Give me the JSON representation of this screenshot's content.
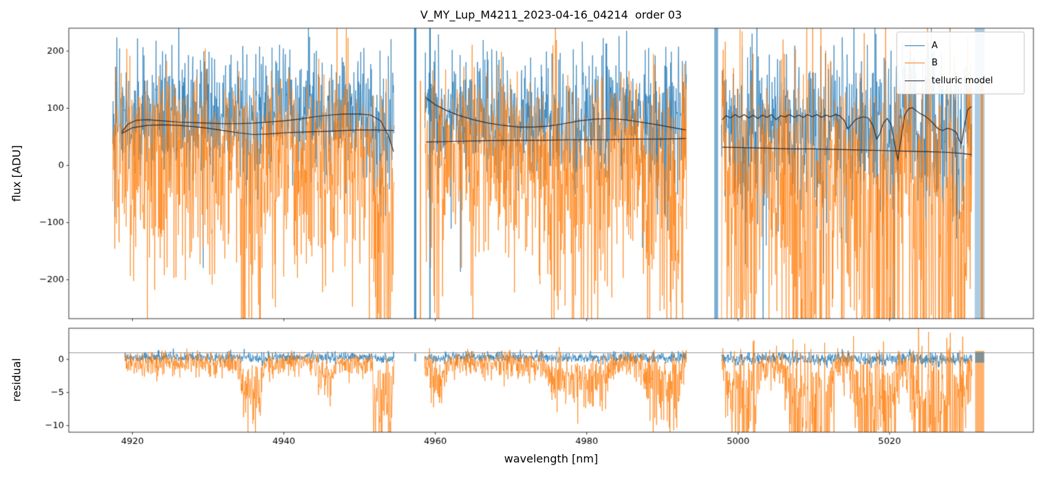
{
  "chart_data": [
    {
      "type": "line",
      "panel": "flux",
      "title": "V_MY_Lup_M4211_2023-04-16_04214  order 03",
      "ylabel": "flux [ADU]",
      "ylim": [
        -268,
        240
      ],
      "yticks": [
        200,
        100,
        0,
        -100,
        -200
      ],
      "x": {
        "lim": [
          4911.6,
          5039.0
        ],
        "ticks": [
          4920,
          4940,
          4960,
          4980,
          5000,
          5020
        ]
      },
      "grid": false,
      "legend": {
        "location": "upper right",
        "entries": [
          {
            "label": "A",
            "color": "#1f77b4"
          },
          {
            "label": "B",
            "color": "#ff7f0e"
          },
          {
            "label": "telluric model",
            "color": "#2b2b33"
          }
        ]
      },
      "segments": [
        {
          "x0": 4917.4,
          "x1": 4954.6,
          "A": {
            "mean": 90,
            "sigma": 55,
            "down_p": 0.004,
            "down_mag": 330,
            "dip_mean": 0.3,
            "dip_sig": 0.002
          },
          "B": {
            "mean": 28,
            "sigma": 62,
            "skew": 1.7,
            "down_p": 0.02,
            "down_mag": 200,
            "dip_mean": 1,
            "dip_sig": 0.01
          }
        },
        {
          "x0": 4958.6,
          "x1": 4993.2,
          "A": {
            "mean": 90,
            "sigma": 55,
            "down_p": 0.006,
            "down_mag": 330,
            "dip_mean": 0.3,
            "dip_sig": 0.002
          },
          "B": {
            "mean": 30,
            "sigma": 60,
            "skew": 1.7,
            "down_p": 0.02,
            "down_mag": 200,
            "dip_mean": 1,
            "dip_sig": 0.01
          }
        },
        {
          "x0": 4997.8,
          "x1": 5030.9,
          "A": {
            "mean": 88,
            "sigma": 58,
            "down_p": 0.02,
            "down_mag": 340,
            "dip_mean": 0.3,
            "dip_sig": 0.002
          },
          "B": {
            "mean": 20,
            "sigma": 72,
            "skew": 1.9,
            "down_p": 0.025,
            "down_mag": 220,
            "dip_mean": 1,
            "dip_sig": 0.01
          }
        }
      ],
      "absorption_regions": [
        {
          "x0": 4934,
          "x1": 4937.5,
          "depth": 60
        },
        {
          "x0": 4944,
          "x1": 4947,
          "depth": 40
        },
        {
          "x0": 4951.5,
          "x1": 4954.6,
          "depth": 110
        },
        {
          "x0": 4959,
          "x1": 4961.5,
          "depth": 50
        },
        {
          "x0": 4974,
          "x1": 4984,
          "depth": 45
        },
        {
          "x0": 4987,
          "x1": 4993.2,
          "depth": 55
        },
        {
          "x0": 4998,
          "x1": 5003,
          "depth": 80
        },
        {
          "x0": 5006,
          "x1": 5013,
          "depth": 110
        },
        {
          "x0": 5015,
          "x1": 5021.5,
          "depth": 90
        },
        {
          "x0": 5022.5,
          "x1": 5030.8,
          "depth": 140
        }
      ],
      "stripes": [
        {
          "x": 4957.35,
          "w": 0.3,
          "series": "A",
          "v0": -268,
          "v1": 240,
          "alpha": 0.85
        },
        {
          "x": 4958.05,
          "w": 0.15,
          "series": "B",
          "v0": -268,
          "v1": 148,
          "alpha": 0.85
        },
        {
          "x": 4959.3,
          "w": 0.2,
          "series": "A",
          "v0": -268,
          "v1": 240,
          "alpha": 0.7
        },
        {
          "x": 4997.1,
          "w": 0.5,
          "series": "A",
          "v0": -268,
          "v1": 240,
          "alpha": 0.6
        },
        {
          "x": 5031.9,
          "w": 1.3,
          "series": "A",
          "v0": -268,
          "v1": 240,
          "alpha": 0.38
        },
        {
          "x": 5032.2,
          "w": 0.25,
          "series": "B",
          "v0": -268,
          "v1": 150,
          "alpha": 0.9
        }
      ],
      "model": {
        "name": "telluric model",
        "color": "#2b2b33",
        "lines": [
          [
            [
              4918.6,
              58
            ],
            [
              4919.4,
              72
            ],
            [
              4920.5,
              79
            ],
            [
              4922,
              80
            ],
            [
              4924,
              78
            ],
            [
              4926,
              76
            ],
            [
              4928,
              75
            ],
            [
              4930,
              74
            ],
            [
              4932,
              73
            ],
            [
              4934,
              73
            ],
            [
              4936,
              74
            ],
            [
              4938,
              76
            ],
            [
              4940,
              78
            ],
            [
              4942,
              81
            ],
            [
              4944,
              85
            ],
            [
              4946,
              88
            ],
            [
              4948,
              90
            ],
            [
              4950,
              90
            ],
            [
              4951.5,
              88
            ],
            [
              4952.8,
              78
            ],
            [
              4953.8,
              52
            ],
            [
              4954.5,
              24
            ]
          ],
          [
            [
              4918.6,
              56
            ],
            [
              4920,
              66
            ],
            [
              4922,
              70
            ],
            [
              4924,
              71
            ],
            [
              4926,
              70
            ],
            [
              4928,
              68
            ],
            [
              4930,
              65
            ],
            [
              4932,
              61
            ],
            [
              4934,
              57
            ],
            [
              4936,
              54
            ],
            [
              4938,
              55
            ],
            [
              4940,
              57
            ],
            [
              4942,
              58
            ],
            [
              4944,
              59
            ],
            [
              4946,
              60
            ],
            [
              4948,
              61
            ],
            [
              4950,
              62
            ],
            [
              4952,
              62
            ],
            [
              4954.5,
              61
            ]
          ],
          [
            [
              4958.8,
              118
            ],
            [
              4960,
              106
            ],
            [
              4961.5,
              96
            ],
            [
              4963,
              88
            ],
            [
              4965,
              80
            ],
            [
              4967,
              74
            ],
            [
              4969,
              70
            ],
            [
              4971,
              67
            ],
            [
              4973,
              67
            ],
            [
              4975,
              69
            ],
            [
              4977,
              73
            ],
            [
              4979,
              78
            ],
            [
              4981,
              81
            ],
            [
              4983,
              82
            ],
            [
              4985,
              80
            ],
            [
              4987,
              76
            ],
            [
              4989,
              72
            ],
            [
              4991,
              67
            ],
            [
              4993.1,
              62
            ]
          ],
          [
            [
              4958.8,
              41
            ],
            [
              4962,
              42
            ],
            [
              4966,
              43
            ],
            [
              4970,
              44
            ],
            [
              4974,
              44
            ],
            [
              4978,
              45
            ],
            [
              4982,
              45
            ],
            [
              4986,
              46
            ],
            [
              4990,
              46
            ],
            [
              4993.1,
              47
            ]
          ],
          [
            [
              4997.9,
              80
            ],
            [
              4998.4,
              87
            ],
            [
              4999,
              83
            ],
            [
              4999.6,
              89
            ],
            [
              5000.2,
              84
            ],
            [
              5000.8,
              89
            ],
            [
              5001.4,
              83
            ],
            [
              5002,
              88
            ],
            [
              5002.6,
              82
            ],
            [
              5003.2,
              88
            ],
            [
              5003.8,
              84
            ],
            [
              5004.4,
              89
            ],
            [
              5005,
              80
            ],
            [
              5005.6,
              87
            ],
            [
              5006.2,
              85
            ],
            [
              5006.8,
              89
            ],
            [
              5007.4,
              84
            ],
            [
              5008,
              88
            ],
            [
              5008.6,
              84
            ],
            [
              5009.2,
              89
            ],
            [
              5009.8,
              85
            ],
            [
              5010.4,
              89
            ],
            [
              5011,
              84
            ],
            [
              5011.6,
              88
            ],
            [
              5012.2,
              85
            ],
            [
              5012.8,
              89
            ],
            [
              5013.4,
              87
            ],
            [
              5014,
              79
            ],
            [
              5014.5,
              64
            ],
            [
              5015,
              72
            ],
            [
              5015.5,
              80
            ],
            [
              5016,
              83
            ],
            [
              5016.6,
              85
            ],
            [
              5017.2,
              83
            ],
            [
              5017.8,
              70
            ],
            [
              5018.3,
              46
            ],
            [
              5018.7,
              55
            ],
            [
              5019.2,
              75
            ],
            [
              5019.7,
              82
            ],
            [
              5020.2,
              72
            ],
            [
              5020.7,
              35
            ],
            [
              5021.1,
              10
            ],
            [
              5021.5,
              45
            ],
            [
              5022,
              88
            ],
            [
              5022.5,
              99
            ],
            [
              5023,
              101
            ],
            [
              5023.5,
              96
            ],
            [
              5024,
              91
            ],
            [
              5024.6,
              87
            ],
            [
              5025.2,
              81
            ],
            [
              5025.8,
              73
            ],
            [
              5026.4,
              64
            ],
            [
              5027,
              61
            ],
            [
              5027.6,
              65
            ],
            [
              5028.2,
              63
            ],
            [
              5028.8,
              58
            ],
            [
              5029.2,
              44
            ],
            [
              5029.5,
              38
            ],
            [
              5029.9,
              70
            ],
            [
              5030.3,
              97
            ],
            [
              5030.8,
              103
            ]
          ],
          [
            [
              4997.9,
              32
            ],
            [
              5001,
              31
            ],
            [
              5004,
              30
            ],
            [
              5007,
              29
            ],
            [
              5010,
              29
            ],
            [
              5013,
              28
            ],
            [
              5016,
              27
            ],
            [
              5019,
              26
            ],
            [
              5022,
              25
            ],
            [
              5025,
              24
            ],
            [
              5027.5,
              23
            ],
            [
              5029.5,
              21
            ],
            [
              5030.8,
              19
            ]
          ]
        ]
      }
    },
    {
      "type": "line",
      "panel": "residual",
      "ylabel": "residual",
      "xlabel": "wavelength [nm]",
      "ylim": [
        -11,
        4.7
      ],
      "yticks": [
        0,
        -5,
        -10
      ],
      "hline": {
        "y": 1.0,
        "color": "#8a8a8a"
      },
      "x": {
        "lim": [
          4911.6,
          5039.0
        ],
        "ticks": [
          4920,
          4940,
          4960,
          4980,
          5000,
          5020
        ]
      },
      "segments": [
        {
          "x0": 4919.0,
          "x1": 4954.6,
          "A": {
            "mean": 0.35,
            "sigma": 0.38,
            "dip_mean": 0.05,
            "dip_sig": 0.02
          },
          "B": {
            "mean": -0.4,
            "sigma": 0.7,
            "skew": 1.6,
            "down_p": 0.01,
            "down_mag": 4,
            "dip_mean": 1,
            "dip_sig": 0.5
          }
        },
        {
          "x0": 4958.6,
          "x1": 4993.2,
          "A": {
            "mean": 0.35,
            "sigma": 0.38,
            "dip_mean": 0.05,
            "dip_sig": 0.02
          },
          "B": {
            "mean": -0.5,
            "sigma": 0.8,
            "skew": 1.6,
            "down_p": 0.01,
            "down_mag": 4,
            "dip_mean": 1,
            "dip_sig": 0.5
          }
        },
        {
          "x0": 4997.8,
          "x1": 5030.9,
          "A": {
            "mean": 0.3,
            "sigma": 0.45,
            "dip_mean": 0.05,
            "dip_sig": 0.02
          },
          "B": {
            "mean": -0.8,
            "sigma": 1.1,
            "skew": 1.8,
            "down_p": 0.015,
            "down_mag": 5,
            "dip_mean": 1,
            "dip_sig": 0.5
          }
        }
      ],
      "absorption_regions": [
        {
          "x0": 4934,
          "x1": 4937.5,
          "depth": 3.5
        },
        {
          "x0": 4944,
          "x1": 4947,
          "depth": 2.5
        },
        {
          "x0": 4951.5,
          "x1": 4954.6,
          "depth": 6
        },
        {
          "x0": 4959,
          "x1": 4961.5,
          "depth": 2.5
        },
        {
          "x0": 4974,
          "x1": 4984,
          "depth": 2.5
        },
        {
          "x0": 4987,
          "x1": 4993.2,
          "depth": 3
        },
        {
          "x0": 4998,
          "x1": 5003,
          "depth": 4
        },
        {
          "x0": 5006,
          "x1": 5013,
          "depth": 6
        },
        {
          "x0": 5015,
          "x1": 5021.5,
          "depth": 5
        },
        {
          "x0": 5022.5,
          "x1": 5030.8,
          "depth": 7
        }
      ],
      "stripes": [
        {
          "x": 4957.35,
          "w": 0.25,
          "series": "A",
          "v0": -0.3,
          "v1": 0.9,
          "alpha": 0.6
        },
        {
          "x": 5031.9,
          "w": 1.2,
          "series": "B",
          "v0": -11,
          "v1": 1.3,
          "alpha": 0.6
        },
        {
          "x": 5031.9,
          "w": 1.2,
          "series": "A",
          "v0": -0.5,
          "v1": 1.1,
          "alpha": 0.55
        }
      ]
    }
  ]
}
